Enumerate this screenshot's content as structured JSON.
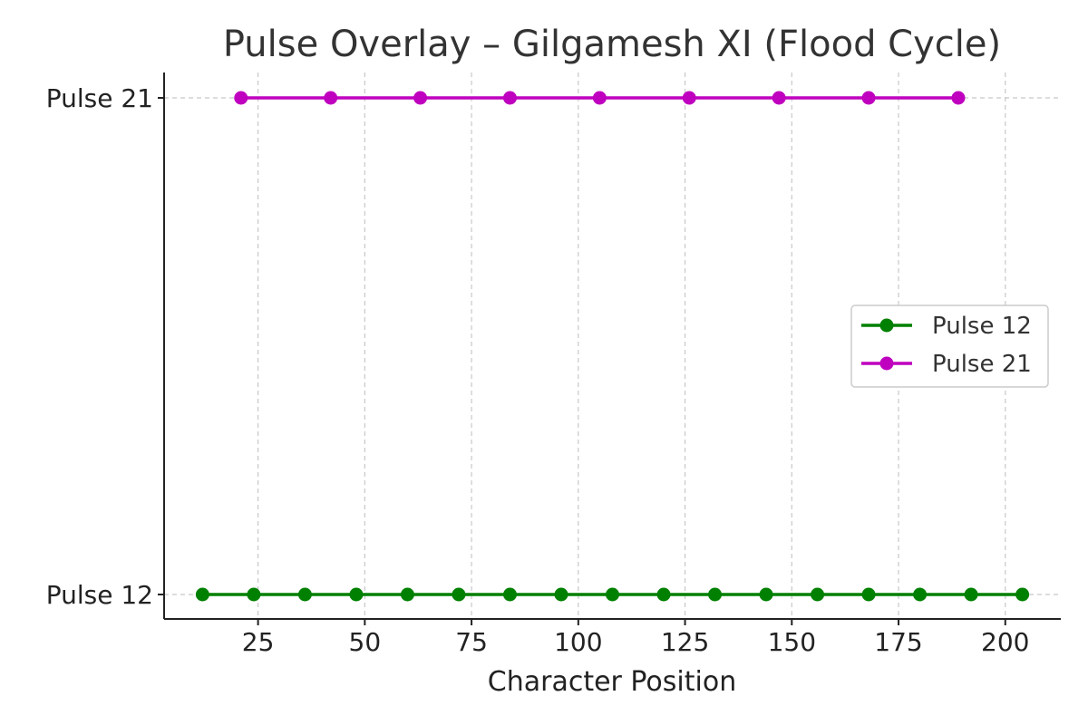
{
  "chart_data": {
    "type": "line",
    "title": "Pulse Overlay – Gilgamesh XI (Flood Cycle)",
    "xlabel": "Character Position",
    "ylabel": "",
    "xlim": [
      3,
      213
    ],
    "ylim": [
      -0.05,
      1.05
    ],
    "x_ticks": [
      25,
      50,
      75,
      100,
      125,
      150,
      175,
      200
    ],
    "x_tick_labels": [
      "25",
      "50",
      "75",
      "100",
      "125",
      "150",
      "175",
      "200"
    ],
    "y_categories": [
      "Pulse 12",
      "Pulse 21"
    ],
    "grid": true,
    "legend_position": "center-right",
    "series": [
      {
        "name": "Pulse 12",
        "color": "#008000",
        "y": 0,
        "x": [
          12,
          24,
          36,
          48,
          60,
          72,
          84,
          96,
          108,
          120,
          132,
          144,
          156,
          168,
          180,
          192,
          204
        ]
      },
      {
        "name": "Pulse 21",
        "color": "#bf00bf",
        "y": 1,
        "x": [
          21,
          42,
          63,
          84,
          105,
          126,
          147,
          168,
          189
        ]
      }
    ]
  }
}
